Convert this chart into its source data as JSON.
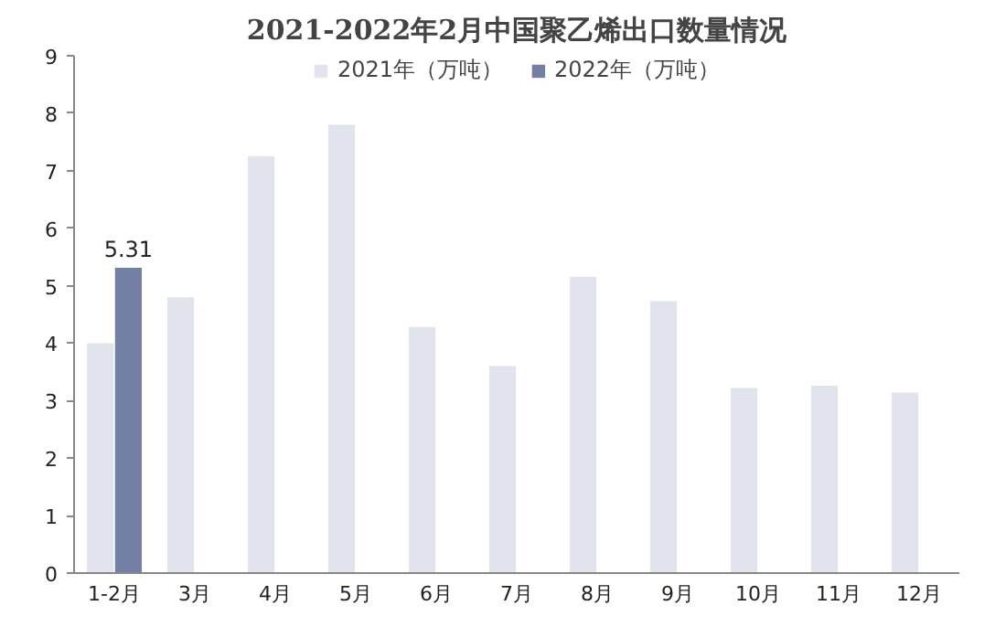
{
  "chart_data": {
    "type": "bar",
    "title": "2021-2022年2月中国聚乙烯出口数量情况",
    "categories": [
      "1-2月",
      "3月",
      "4月",
      "5月",
      "6月",
      "7月",
      "8月",
      "9月",
      "10月",
      "11月",
      "12月"
    ],
    "series": [
      {
        "name": "2021年（万吨）",
        "color": "#e1e4ec",
        "values": [
          4.0,
          4.8,
          7.25,
          7.8,
          4.28,
          3.6,
          5.15,
          4.73,
          3.22,
          3.26,
          3.14
        ]
      },
      {
        "name": "2022年（万吨）",
        "color": "#737fa3",
        "values": [
          5.31,
          null,
          null,
          null,
          null,
          null,
          null,
          null,
          null,
          null,
          null
        ],
        "value_labels": [
          "5.31",
          null,
          null,
          null,
          null,
          null,
          null,
          null,
          null,
          null,
          null
        ]
      }
    ],
    "ylim": [
      0,
      9
    ],
    "yticks": [
      0,
      1,
      2,
      3,
      4,
      5,
      6,
      7,
      8,
      9
    ],
    "grid": false,
    "legend": "top"
  }
}
